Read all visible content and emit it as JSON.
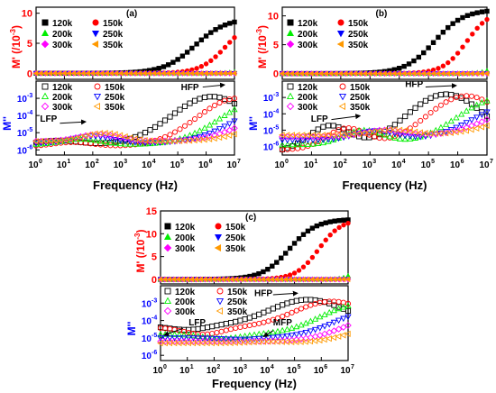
{
  "chart_data": [
    {
      "type": "scatter",
      "panel_label": "(a)",
      "xlabel": "Frequency (Hz)",
      "xscale": "log",
      "xlim": [
        1,
        10000000
      ],
      "x_ticks": [
        "10",
        "10",
        "10",
        "10",
        "10",
        "10",
        "10",
        "10"
      ],
      "x_exponents": [
        "0",
        "1",
        "2",
        "3",
        "4",
        "5",
        "6",
        "7"
      ],
      "top": {
        "ylabel_main": "M' (/10",
        "ylabel_exp": "-3",
        "ylabel_tail": ")",
        "ylim": [
          -1,
          11
        ],
        "y_ticks": [
          "0",
          "5",
          "10"
        ],
        "legend": [
          {
            "name": "120k",
            "color": "#000000",
            "marker": "square-filled"
          },
          {
            "name": "150k",
            "color": "#ff0000",
            "marker": "circle-filled"
          },
          {
            "name": "200k",
            "color": "#00ee00",
            "marker": "triangle-up-filled"
          },
          {
            "name": "250k",
            "color": "#0000ff",
            "marker": "triangle-down-filled"
          },
          {
            "name": "300k",
            "color": "#ff00ff",
            "marker": "diamond-filled"
          },
          {
            "name": "350k",
            "color": "#ff9900",
            "marker": "triangle-left-filled"
          }
        ],
        "series": [
          {
            "name": "120k",
            "values": {
              "mid": 5.6,
              "high": 9.2,
              "width": 0.55
            }
          },
          {
            "name": "150k",
            "values": {
              "mid": 6.7,
              "high": 9.0,
              "width": 0.45
            }
          },
          {
            "name": "200k",
            "values": {
              "mid": 7.6,
              "high": 1.6,
              "width": 0.3
            }
          },
          {
            "name": "250k",
            "values": {
              "mid": 8.5,
              "high": 0.0,
              "width": 0.3
            }
          },
          {
            "name": "300k",
            "values": {
              "mid": 8.5,
              "high": 0.0,
              "width": 0.3
            }
          },
          {
            "name": "350k",
            "values": {
              "mid": 8.5,
              "high": 0.0,
              "width": 0.3
            }
          }
        ]
      },
      "bottom": {
        "ylabel": "M''",
        "yscale": "log",
        "ylim": [
          5e-07,
          0.01
        ],
        "y_ticks": [
          "10",
          "10",
          "10",
          "10"
        ],
        "y_exponents": [
          "-3",
          "-4",
          "-5",
          "-6"
        ],
        "legend": [
          {
            "name": "120k",
            "color": "#000000",
            "marker": "square-open"
          },
          {
            "name": "150k",
            "color": "#ff0000",
            "marker": "circle-open"
          },
          {
            "name": "200k",
            "color": "#00ee00",
            "marker": "triangle-up-open"
          },
          {
            "name": "250k",
            "color": "#0000ff",
            "marker": "triangle-down-open"
          },
          {
            "name": "300k",
            "color": "#ff00ff",
            "marker": "diamond-open"
          },
          {
            "name": "350k",
            "color": "#ff9900",
            "marker": "triangle-left-open"
          }
        ],
        "series": [
          {
            "name": "120k",
            "values": {
              "start": -5.7,
              "peak_x": 6.2,
              "peak_y": -2.9,
              "bump_x": 0.8,
              "bump_y": -5.4
            }
          },
          {
            "name": "150k",
            "values": {
              "start": -5.8,
              "peak_x": 7.1,
              "peak_y": -3.0,
              "bump_x": 1.3,
              "bump_y": -5.5
            }
          },
          {
            "name": "200k",
            "values": {
              "start": -5.7,
              "peak_x": 7.9,
              "peak_y": -3.2,
              "bump_x": 1.6,
              "bump_y": -5.3
            }
          },
          {
            "name": "250k",
            "values": {
              "start": -5.6,
              "peak_x": 8.4,
              "peak_y": -3.5,
              "bump_x": 2.0,
              "bump_y": -5.1
            }
          },
          {
            "name": "300k",
            "values": {
              "start": -5.5,
              "peak_x": 8.8,
              "peak_y": -3.8,
              "bump_x": 2.2,
              "bump_y": -5.0
            }
          },
          {
            "name": "350k",
            "values": {
              "start": -5.5,
              "peak_x": 9.2,
              "peak_y": -4.1,
              "bump_x": 2.4,
              "bump_y": -4.9
            }
          }
        ],
        "annotations": [
          "HFP",
          "LFP"
        ]
      }
    },
    {
      "type": "scatter",
      "panel_label": "(b)",
      "xlabel": "Frequency (Hz)",
      "xscale": "log",
      "xlim": [
        1,
        10000000
      ],
      "x_ticks": [
        "10",
        "10",
        "10",
        "10",
        "10",
        "10",
        "10",
        "10"
      ],
      "x_exponents": [
        "0",
        "1",
        "2",
        "3",
        "4",
        "5",
        "6",
        "7"
      ],
      "top": {
        "ylabel_main": "M' (/10",
        "ylabel_exp": "-3",
        "ylabel_tail": ")",
        "ylim": [
          -1,
          11.5
        ],
        "y_ticks": [
          "0",
          "5",
          "10"
        ],
        "legend": [
          {
            "name": "120k",
            "color": "#000000",
            "marker": "square-filled"
          },
          {
            "name": "150k",
            "color": "#ff0000",
            "marker": "circle-filled"
          },
          {
            "name": "200k",
            "color": "#00ee00",
            "marker": "triangle-up-filled"
          },
          {
            "name": "250k",
            "color": "#0000ff",
            "marker": "triangle-down-filled"
          },
          {
            "name": "300k",
            "color": "#ff00ff",
            "marker": "diamond-filled"
          },
          {
            "name": "350k",
            "color": "#ff9900",
            "marker": "triangle-left-filled"
          }
        ],
        "series": [
          {
            "name": "120k",
            "values": {
              "mid": 5.2,
              "high": 11.1,
              "width": 0.5
            }
          },
          {
            "name": "150k",
            "values": {
              "mid": 6.3,
              "high": 11.0,
              "width": 0.4
            }
          },
          {
            "name": "200k",
            "values": {
              "mid": 7.6,
              "high": 5.5,
              "width": 0.25
            }
          },
          {
            "name": "250k",
            "values": {
              "mid": 8.5,
              "high": 0.0,
              "width": 0.3
            }
          },
          {
            "name": "300k",
            "values": {
              "mid": 8.5,
              "high": 0.0,
              "width": 0.3
            }
          },
          {
            "name": "350k",
            "values": {
              "mid": 8.5,
              "high": 0.0,
              "width": 0.3
            }
          }
        ]
      },
      "bottom": {
        "ylabel": "M''",
        "yscale": "log",
        "ylim": [
          3e-07,
          0.01
        ],
        "y_ticks": [
          "10",
          "10",
          "10",
          "10"
        ],
        "y_exponents": [
          "-3",
          "-4",
          "-5",
          "-6"
        ],
        "legend": [
          {
            "name": "120k",
            "color": "#000000",
            "marker": "square-open"
          },
          {
            "name": "150k",
            "color": "#ff0000",
            "marker": "circle-open"
          },
          {
            "name": "200k",
            "color": "#00ee00",
            "marker": "triangle-up-open"
          },
          {
            "name": "250k",
            "color": "#0000ff",
            "marker": "triangle-down-open"
          },
          {
            "name": "300k",
            "color": "#ff00ff",
            "marker": "diamond-open"
          },
          {
            "name": "350k",
            "color": "#ff9900",
            "marker": "triangle-left-open"
          }
        ],
        "series": [
          {
            "name": "120k",
            "values": {
              "start": -6.3,
              "peak_x": 5.6,
              "peak_y": -2.8,
              "bump_x": 1.6,
              "bump_y": -4.4
            }
          },
          {
            "name": "150k",
            "values": {
              "start": -6.2,
              "peak_x": 6.3,
              "peak_y": -2.9,
              "bump_x": 2.2,
              "bump_y": -4.6
            }
          },
          {
            "name": "200k",
            "values": {
              "start": -5.9,
              "peak_x": 7.4,
              "peak_y": -3.1,
              "bump_x": 2.8,
              "bump_y": -4.8
            }
          },
          {
            "name": "250k",
            "values": {
              "start": -5.6,
              "peak_x": 8.0,
              "peak_y": -3.4,
              "bump_x": 3.2,
              "bump_y": -4.9
            }
          },
          {
            "name": "300k",
            "values": {
              "start": -5.4,
              "peak_x": 8.4,
              "peak_y": -3.7,
              "bump_x": 3.5,
              "bump_y": -4.9
            }
          },
          {
            "name": "350k",
            "values": {
              "start": -5.3,
              "peak_x": 8.8,
              "peak_y": -4.0,
              "bump_x": 3.8,
              "bump_y": -4.9
            }
          }
        ],
        "annotations": [
          "HFP",
          "LFP"
        ]
      }
    },
    {
      "type": "scatter",
      "panel_label": "(c)",
      "xlabel": "Frequency (Hz)",
      "xscale": "log",
      "xlim": [
        1,
        10000000
      ],
      "x_ticks": [
        "10",
        "10",
        "10",
        "10",
        "10",
        "10",
        "10",
        "10"
      ],
      "x_exponents": [
        "0",
        "1",
        "2",
        "3",
        "4",
        "5",
        "6",
        "7"
      ],
      "top": {
        "ylabel_main": "M' (/10",
        "ylabel_exp": "-3",
        "ylabel_tail": ")",
        "ylim": [
          -1,
          15
        ],
        "y_ticks": [
          "0",
          "5",
          "10",
          "15"
        ],
        "legend": [
          {
            "name": "120k",
            "color": "#000000",
            "marker": "square-filled"
          },
          {
            "name": "150k",
            "color": "#ff0000",
            "marker": "circle-filled"
          },
          {
            "name": "200k",
            "color": "#00ee00",
            "marker": "triangle-up-filled"
          },
          {
            "name": "250k",
            "color": "#0000ff",
            "marker": "triangle-down-filled"
          },
          {
            "name": "300k",
            "color": "#ff00ff",
            "marker": "diamond-filled"
          },
          {
            "name": "350k",
            "color": "#ff9900",
            "marker": "triangle-left-filled"
          }
        ],
        "series": [
          {
            "name": "120k",
            "values": {
              "mid": 4.8,
              "high": 13.2,
              "width": 0.5
            }
          },
          {
            "name": "150k",
            "values": {
              "mid": 5.9,
              "high": 13.2,
              "width": 0.42
            }
          },
          {
            "name": "200k",
            "values": {
              "mid": 7.5,
              "high": 8.0,
              "width": 0.22
            }
          },
          {
            "name": "250k",
            "values": {
              "mid": 8.5,
              "high": 0.0,
              "width": 0.3
            }
          },
          {
            "name": "300k",
            "values": {
              "mid": 8.5,
              "high": 0.0,
              "width": 0.3
            }
          },
          {
            "name": "350k",
            "values": {
              "mid": 8.5,
              "high": 0.0,
              "width": 0.3
            }
          }
        ]
      },
      "bottom": {
        "ylabel": "M''",
        "yscale": "log",
        "ylim": [
          5e-07,
          0.01
        ],
        "y_ticks": [
          "10",
          "10",
          "10",
          "10"
        ],
        "y_exponents": [
          "-3",
          "-4",
          "-5",
          "-6"
        ],
        "legend": [
          {
            "name": "120k",
            "color": "#000000",
            "marker": "square-open"
          },
          {
            "name": "150k",
            "color": "#ff0000",
            "marker": "circle-open"
          },
          {
            "name": "200k",
            "color": "#00ee00",
            "marker": "triangle-up-open"
          },
          {
            "name": "250k",
            "color": "#0000ff",
            "marker": "triangle-down-open"
          },
          {
            "name": "300k",
            "color": "#ff00ff",
            "marker": "diamond-open"
          },
          {
            "name": "350k",
            "color": "#ff9900",
            "marker": "triangle-left-open"
          }
        ],
        "series": [
          {
            "name": "120k",
            "values": {
              "start": -4.3,
              "peak_x": 5.5,
              "peak_y": -2.8,
              "bump_x": 1.0,
              "bump_y": -4.6
            }
          },
          {
            "name": "150k",
            "values": {
              "start": -4.4,
              "peak_x": 6.4,
              "peak_y": -2.9,
              "bump_x": 1.6,
              "bump_y": -4.9
            }
          },
          {
            "name": "200k",
            "values": {
              "start": -4.8,
              "peak_x": 7.4,
              "peak_y": -3.1,
              "bump_x": 2.3,
              "bump_y": -5.1
            }
          },
          {
            "name": "250k",
            "values": {
              "start": -5.0,
              "peak_x": 7.9,
              "peak_y": -3.5,
              "bump_x": 3.0,
              "bump_y": -5.1
            }
          },
          {
            "name": "300k",
            "values": {
              "start": -5.2,
              "peak_x": 8.3,
              "peak_y": -3.8,
              "bump_x": 3.5,
              "bump_y": -5.2
            }
          },
          {
            "name": "350k",
            "values": {
              "start": -5.3,
              "peak_x": 8.7,
              "peak_y": -4.2,
              "bump_x": 4.0,
              "bump_y": -5.2
            }
          }
        ],
        "annotations": [
          "HFP",
          "LFP",
          "MFP"
        ]
      }
    }
  ]
}
